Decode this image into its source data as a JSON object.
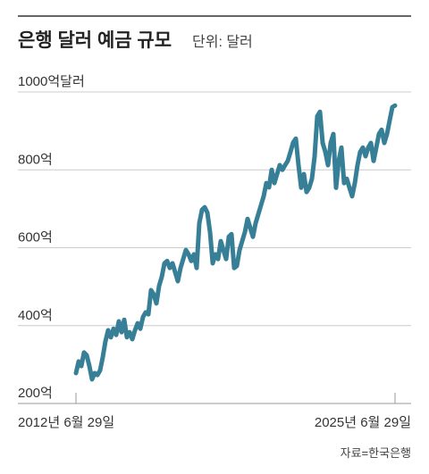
{
  "chart_data": {
    "type": "line",
    "title": "은행 달러 예금 규모",
    "subtitle": "단위: 달러",
    "source": "자료=한국은행",
    "categories": [
      "2012년 6월 29일",
      null,
      null,
      null,
      null,
      null,
      null,
      null,
      null,
      null,
      null,
      null,
      null,
      null,
      null,
      null,
      null,
      null,
      null,
      null,
      null,
      null,
      null,
      null,
      null,
      null,
      null,
      null,
      null,
      null,
      null,
      null,
      null,
      null,
      null,
      null,
      null,
      null,
      null,
      null,
      null,
      null,
      null,
      null,
      null,
      null,
      null,
      null,
      null,
      null,
      null,
      null,
      null,
      null,
      null,
      null,
      null,
      null,
      null,
      null,
      null,
      null,
      null,
      null,
      null,
      null,
      null,
      null,
      null,
      null,
      null,
      null,
      null,
      null,
      null,
      null,
      null,
      null,
      null,
      null,
      null,
      null,
      null,
      null,
      null,
      null,
      null,
      null,
      null,
      null,
      null,
      null,
      null,
      null,
      null,
      null,
      null,
      null,
      null,
      null,
      null,
      null,
      null,
      null,
      null,
      null,
      null,
      null,
      null,
      null,
      null,
      null,
      null,
      null,
      null,
      null,
      null,
      null,
      null,
      "2025년 6월 29일"
    ],
    "series": [
      {
        "color": "#367f97",
        "values": [
          278,
          308,
          296,
          331,
          324,
          296,
          262,
          278,
          273,
          285,
          319,
          360,
          388,
          370,
          392,
          376,
          411,
          383,
          415,
          370,
          383,
          365,
          388,
          406,
          392,
          422,
          434,
          429,
          491,
          480,
          457,
          502,
          525,
          560,
          566,
          548,
          560,
          537,
          514,
          548,
          571,
          594,
          583,
          566,
          583,
          548,
          663,
          697,
          704,
          690,
          640,
          560,
          583,
          571,
          617,
          594,
          571,
          628,
          635,
          548,
          553,
          594,
          617,
          640,
          674,
          651,
          628,
          663,
          686,
          709,
          732,
          766,
          755,
          800,
          766,
          789,
          812,
          800,
          812,
          823,
          846,
          870,
          880,
          812,
          754,
          789,
          743,
          754,
          777,
          834,
          938,
          949,
          869,
          846,
          812,
          869,
          892,
          754,
          823,
          857,
          766,
          777,
          754,
          732,
          766,
          812,
          846,
          857,
          835,
          857,
          869,
          823,
          857,
          892,
          903,
          869,
          892,
          927,
          961,
          965
        ]
      }
    ],
    "ylim": [
      200,
      1000
    ],
    "yticks": [
      {
        "value": 200,
        "label": "200억"
      },
      {
        "value": 400,
        "label": "400억"
      },
      {
        "value": 600,
        "label": "600억"
      },
      {
        "value": 800,
        "label": "800억"
      },
      {
        "value": 1000,
        "label": "1000억달러"
      }
    ],
    "grid": true
  }
}
